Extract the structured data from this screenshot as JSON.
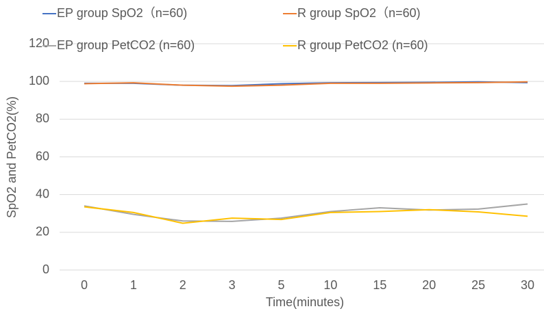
{
  "chart_data": {
    "type": "line",
    "x_label": "Time(minutes)",
    "y_label": "SpO2 and PetCO2(%)",
    "categories": [
      "0",
      "1",
      "2",
      "3",
      "5",
      "10",
      "15",
      "20",
      "25",
      "30"
    ],
    "series": [
      {
        "name": "EP group SpO2（n=60)",
        "color": "#4472c4",
        "values": [
          99,
          99,
          98,
          97.8,
          98.8,
          99.3,
          99.4,
          99.5,
          99.8,
          99.4
        ]
      },
      {
        "name": "R group SpO2（n=60)",
        "color": "#ed7d31",
        "values": [
          98.8,
          99.3,
          98,
          97.5,
          98,
          99,
          99,
          99.2,
          99.4,
          99.8
        ]
      },
      {
        "name": "EP group PetCO2  (n=60)",
        "color": "#a5a5a5",
        "values": [
          34,
          29.5,
          26,
          25.8,
          27.5,
          31,
          33,
          31.8,
          32.3,
          35
        ]
      },
      {
        "name": "R group PetCO2  (n=60)",
        "color": "#ffc000",
        "values": [
          33.5,
          30.5,
          24.8,
          27.5,
          26.8,
          30.5,
          31,
          32,
          30.8,
          28.5
        ]
      }
    ],
    "ylim": [
      0,
      120
    ],
    "yticks": [
      0,
      20,
      40,
      60,
      80,
      100,
      120
    ],
    "grid": true
  }
}
